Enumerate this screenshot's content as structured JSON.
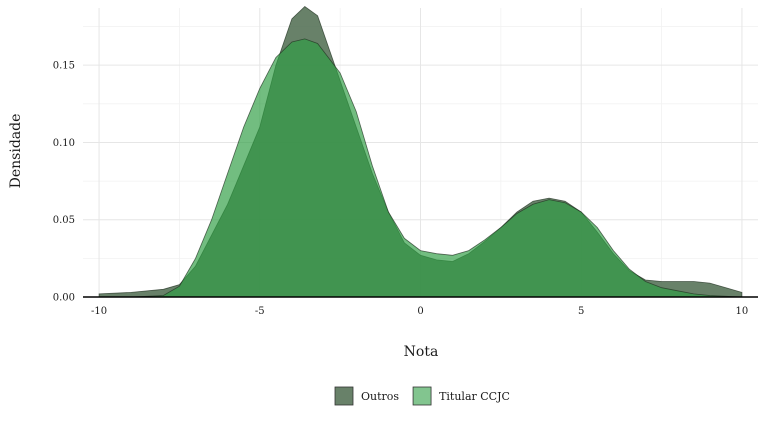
{
  "chart_data": {
    "type": "area",
    "xlabel": "Nota",
    "ylabel": "Densidade",
    "xlim": [
      -10.5,
      10.5
    ],
    "ylim": [
      0,
      0.187
    ],
    "xticks": [
      -10,
      -5,
      0,
      5,
      10
    ],
    "xtick_labels": [
      "-10",
      "-5",
      "0",
      "5",
      "10"
    ],
    "yticks": [
      0.0,
      0.05,
      0.1,
      0.15
    ],
    "ytick_labels": [
      "0.00",
      "0.05",
      "0.10",
      "0.15"
    ],
    "grid": true,
    "legend_position": "bottom",
    "series": [
      {
        "name": "Outros",
        "color": "#4e6b4f",
        "points": [
          [
            -10,
            0.002
          ],
          [
            -9,
            0.003
          ],
          [
            -8,
            0.005
          ],
          [
            -7.5,
            0.008
          ],
          [
            -7,
            0.02
          ],
          [
            -6,
            0.06
          ],
          [
            -5,
            0.11
          ],
          [
            -4.5,
            0.15
          ],
          [
            -4,
            0.18
          ],
          [
            -3.6,
            0.188
          ],
          [
            -3.2,
            0.182
          ],
          [
            -2.5,
            0.14
          ],
          [
            -2,
            0.11
          ],
          [
            -1.5,
            0.08
          ],
          [
            -1,
            0.055
          ],
          [
            -0.5,
            0.035
          ],
          [
            0,
            0.027
          ],
          [
            0.5,
            0.024
          ],
          [
            1,
            0.023
          ],
          [
            1.5,
            0.028
          ],
          [
            2,
            0.036
          ],
          [
            2.5,
            0.045
          ],
          [
            3,
            0.055
          ],
          [
            3.5,
            0.062
          ],
          [
            4,
            0.064
          ],
          [
            4.5,
            0.062
          ],
          [
            5,
            0.055
          ],
          [
            5.5,
            0.042
          ],
          [
            6,
            0.028
          ],
          [
            6.5,
            0.017
          ],
          [
            7,
            0.011
          ],
          [
            7.5,
            0.01
          ],
          [
            8,
            0.01
          ],
          [
            8.5,
            0.01
          ],
          [
            9,
            0.009
          ],
          [
            9.5,
            0.006
          ],
          [
            10,
            0.003
          ]
        ]
      },
      {
        "name": "Titular CCJC",
        "color": "#2f9e44",
        "points": [
          [
            -9,
            0
          ],
          [
            -8,
            0.001
          ],
          [
            -7.5,
            0.007
          ],
          [
            -7,
            0.025
          ],
          [
            -6.5,
            0.05
          ],
          [
            -6,
            0.08
          ],
          [
            -5.5,
            0.11
          ],
          [
            -5,
            0.135
          ],
          [
            -4.5,
            0.155
          ],
          [
            -4,
            0.165
          ],
          [
            -3.6,
            0.167
          ],
          [
            -3.2,
            0.164
          ],
          [
            -2.5,
            0.145
          ],
          [
            -2,
            0.12
          ],
          [
            -1.5,
            0.085
          ],
          [
            -1,
            0.055
          ],
          [
            -0.5,
            0.038
          ],
          [
            0,
            0.03
          ],
          [
            0.5,
            0.028
          ],
          [
            1,
            0.027
          ],
          [
            1.5,
            0.03
          ],
          [
            2,
            0.037
          ],
          [
            2.5,
            0.045
          ],
          [
            3,
            0.054
          ],
          [
            3.5,
            0.06
          ],
          [
            4,
            0.063
          ],
          [
            4.5,
            0.061
          ],
          [
            5,
            0.055
          ],
          [
            5.5,
            0.045
          ],
          [
            6,
            0.03
          ],
          [
            6.5,
            0.018
          ],
          [
            7,
            0.01
          ],
          [
            7.5,
            0.006
          ],
          [
            8,
            0.004
          ],
          [
            8.5,
            0.002
          ],
          [
            9,
            0.001
          ],
          [
            10,
            0
          ]
        ]
      }
    ]
  }
}
